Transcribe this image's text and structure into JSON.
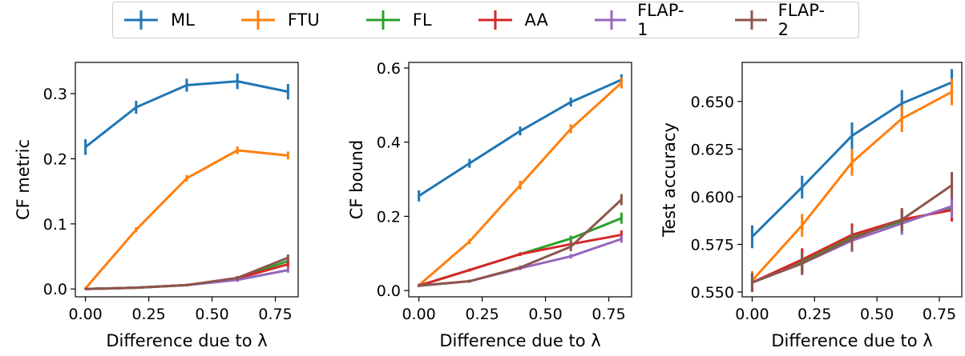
{
  "legend": {
    "position": "top-center",
    "items": [
      {
        "label": "ML",
        "color": "#1f77b4"
      },
      {
        "label": "FTU",
        "color": "#ff7f0e"
      },
      {
        "label": "FL",
        "color": "#2ca02c"
      },
      {
        "label": "AA",
        "color": "#d62728"
      },
      {
        "label": "FLAP-1",
        "color": "#9467bd"
      },
      {
        "label": "FLAP-2",
        "color": "#8c564b"
      }
    ]
  },
  "chart_data": [
    {
      "type": "line",
      "xlabel": "Difference due to λ",
      "ylabel": "CF metric",
      "x": [
        0.0,
        0.2,
        0.4,
        0.6,
        0.8
      ],
      "xlim": [
        -0.04,
        0.84
      ],
      "ylim": [
        -0.012,
        0.348
      ],
      "xticks": [
        0.0,
        0.25,
        0.5,
        0.75
      ],
      "xtick_labels": [
        "0.00",
        "0.25",
        "0.50",
        "0.75"
      ],
      "yticks": [
        0.0,
        0.1,
        0.2,
        0.3
      ],
      "ytick_labels": [
        "0.0",
        "0.1",
        "0.2",
        "0.3"
      ],
      "grid": false,
      "series": [
        {
          "name": "ML",
          "color": "#1f77b4",
          "values": [
            0.218,
            0.279,
            0.313,
            0.319,
            0.303
          ],
          "errors": [
            0.012,
            0.01,
            0.01,
            0.012,
            0.012
          ]
        },
        {
          "name": "FTU",
          "color": "#ff7f0e",
          "values": [
            0.001,
            0.091,
            0.17,
            0.213,
            0.205
          ],
          "errors": [
            0.002,
            0.004,
            0.005,
            0.006,
            0.006
          ]
        },
        {
          "name": "FL",
          "color": "#2ca02c",
          "values": [
            0.0,
            0.002,
            0.006,
            0.016,
            0.043
          ],
          "errors": [
            0.001,
            0.001,
            0.002,
            0.003,
            0.005
          ]
        },
        {
          "name": "AA",
          "color": "#d62728",
          "values": [
            0.0,
            0.002,
            0.006,
            0.016,
            0.038
          ],
          "errors": [
            0.001,
            0.001,
            0.002,
            0.003,
            0.005
          ]
        },
        {
          "name": "FLAP-1",
          "color": "#9467bd",
          "values": [
            0.0,
            0.002,
            0.006,
            0.014,
            0.029
          ],
          "errors": [
            0.001,
            0.001,
            0.002,
            0.003,
            0.004
          ]
        },
        {
          "name": "FLAP-2",
          "color": "#8c564b",
          "values": [
            0.0,
            0.002,
            0.006,
            0.017,
            0.048
          ],
          "errors": [
            0.001,
            0.001,
            0.002,
            0.003,
            0.005
          ]
        }
      ]
    },
    {
      "type": "line",
      "xlabel": "Difference due to λ",
      "ylabel": "CF bound",
      "x": [
        0.0,
        0.2,
        0.4,
        0.6,
        0.8
      ],
      "xlim": [
        -0.04,
        0.84
      ],
      "ylim": [
        -0.017,
        0.615
      ],
      "xticks": [
        0.0,
        0.25,
        0.5,
        0.75
      ],
      "xtick_labels": [
        "0.00",
        "0.25",
        "0.50",
        "0.75"
      ],
      "yticks": [
        0.0,
        0.2,
        0.4,
        0.6
      ],
      "ytick_labels": [
        "0.0",
        "0.2",
        "0.4",
        "0.6"
      ],
      "grid": false,
      "series": [
        {
          "name": "ML",
          "color": "#1f77b4",
          "values": [
            0.255,
            0.343,
            0.43,
            0.508,
            0.568
          ],
          "errors": [
            0.015,
            0.012,
            0.012,
            0.012,
            0.015
          ]
        },
        {
          "name": "FTU",
          "color": "#ff7f0e",
          "values": [
            0.014,
            0.132,
            0.284,
            0.436,
            0.56
          ],
          "errors": [
            0.004,
            0.007,
            0.012,
            0.012,
            0.015
          ]
        },
        {
          "name": "FL",
          "color": "#2ca02c",
          "values": [
            0.013,
            0.055,
            0.098,
            0.14,
            0.195
          ],
          "errors": [
            0.004,
            0.004,
            0.005,
            0.008,
            0.015
          ]
        },
        {
          "name": "AA",
          "color": "#d62728",
          "values": [
            0.013,
            0.055,
            0.098,
            0.125,
            0.15
          ],
          "errors": [
            0.004,
            0.004,
            0.005,
            0.008,
            0.012
          ]
        },
        {
          "name": "FLAP-1",
          "color": "#9467bd",
          "values": [
            0.013,
            0.025,
            0.06,
            0.092,
            0.139
          ],
          "errors": [
            0.004,
            0.004,
            0.005,
            0.006,
            0.01
          ]
        },
        {
          "name": "FLAP-2",
          "color": "#8c564b",
          "values": [
            0.013,
            0.025,
            0.062,
            0.118,
            0.245
          ],
          "errors": [
            0.004,
            0.004,
            0.005,
            0.012,
            0.015
          ]
        }
      ]
    },
    {
      "type": "line",
      "xlabel": "Difference due to λ",
      "ylabel": "Test accuracy",
      "x": [
        0.0,
        0.2,
        0.4,
        0.6,
        0.8
      ],
      "xlim": [
        -0.04,
        0.84
      ],
      "ylim": [
        0.5475,
        0.6705
      ],
      "xticks": [
        0.0,
        0.25,
        0.5,
        0.75
      ],
      "xtick_labels": [
        "0.00",
        "0.25",
        "0.50",
        "0.75"
      ],
      "yticks": [
        0.55,
        0.575,
        0.6,
        0.625,
        0.65
      ],
      "ytick_labels": [
        "0.550",
        "0.575",
        "0.600",
        "0.625",
        "0.650"
      ],
      "grid": false,
      "series": [
        {
          "name": "ML",
          "color": "#1f77b4",
          "values": [
            0.579,
            0.605,
            0.632,
            0.649,
            0.66
          ],
          "errors": [
            0.006,
            0.006,
            0.007,
            0.007,
            0.007
          ]
        },
        {
          "name": "FTU",
          "color": "#ff7f0e",
          "values": [
            0.556,
            0.585,
            0.618,
            0.641,
            0.655
          ],
          "errors": [
            0.005,
            0.006,
            0.007,
            0.007,
            0.007
          ]
        },
        {
          "name": "FL",
          "color": "#2ca02c",
          "values": [
            0.555,
            0.566,
            0.579,
            0.587,
            0.594
          ],
          "errors": [
            0.005,
            0.006,
            0.006,
            0.006,
            0.006
          ]
        },
        {
          "name": "AA",
          "color": "#d62728",
          "values": [
            0.555,
            0.567,
            0.58,
            0.588,
            0.593
          ],
          "errors": [
            0.005,
            0.006,
            0.006,
            0.006,
            0.006
          ]
        },
        {
          "name": "FLAP-1",
          "color": "#9467bd",
          "values": [
            0.555,
            0.565,
            0.577,
            0.586,
            0.595
          ],
          "errors": [
            0.005,
            0.006,
            0.006,
            0.006,
            0.006
          ]
        },
        {
          "name": "FLAP-2",
          "color": "#8c564b",
          "values": [
            0.555,
            0.565,
            0.578,
            0.588,
            0.606
          ],
          "errors": [
            0.005,
            0.006,
            0.006,
            0.006,
            0.007
          ]
        }
      ]
    }
  ]
}
